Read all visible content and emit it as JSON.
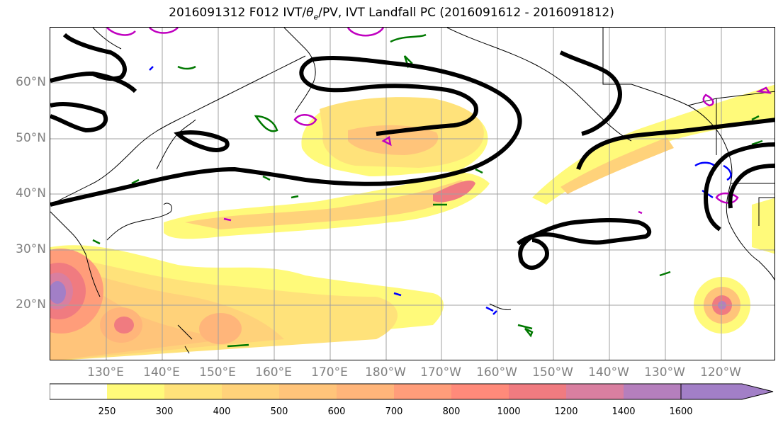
{
  "title_parts": {
    "prefix": "2016091312 F012 IVT/",
    "theta": "θ",
    "sub": "e",
    "suffix": "/PV, IVT Landfall PC (2016091612 - 2016091812)"
  },
  "lat_labels": [
    "60°N",
    "50°N",
    "40°N",
    "30°N",
    "20°N"
  ],
  "lon_labels": [
    "130°E",
    "140°E",
    "150°E",
    "160°E",
    "170°E",
    "180°W",
    "170°W",
    "160°W",
    "150°W",
    "140°W",
    "130°W",
    "120°W"
  ],
  "colorbar": {
    "levels": [
      "250",
      "300",
      "400",
      "500",
      "600",
      "700",
      "800",
      "1000",
      "1200",
      "1400",
      "1600"
    ],
    "colors": [
      "#ffffff",
      "#fffa7a",
      "#ffe27a",
      "#ffd27a",
      "#ffc47a",
      "#ffb57a",
      "#ff9d7a",
      "#ff8a7a",
      "#f07b80",
      "#d97fa0",
      "#b57fbd",
      "#a27fc7"
    ]
  },
  "contour_colors": {
    "pc": "#000000",
    "theta_e": "#007800",
    "pv_pos": "#c000c0",
    "pv_neg": "#0000ff",
    "coast": "#000000",
    "grid": "#a0a0a0"
  }
}
